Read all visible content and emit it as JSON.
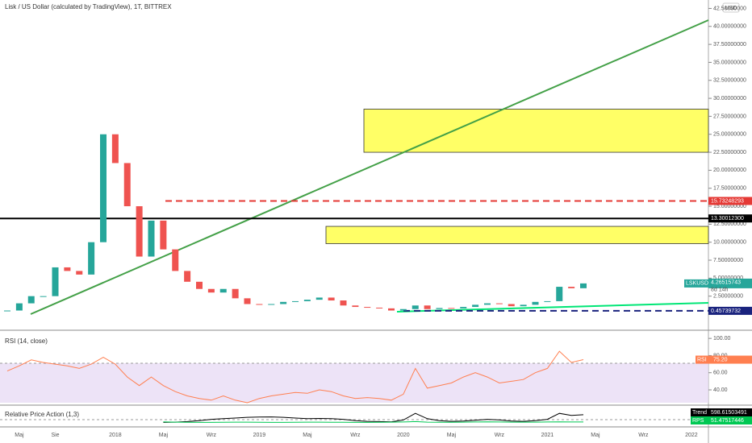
{
  "chart_data": {
    "type": "candle-line",
    "title": "Lisk / US Dollar (calculated by TradingView), 1T, BITTREX",
    "currency": "USD",
    "symbol": "LSKUSD",
    "countdown": "8d 14h",
    "last_price": {
      "value": 4.26515743,
      "label": "4.26515743"
    },
    "categories": [
      null,
      "Maj",
      null,
      null,
      "Sie",
      null,
      null,
      null,
      null,
      "2018",
      null,
      null,
      null,
      "Maj",
      null,
      null,
      null,
      "Wrz",
      null,
      null,
      null,
      "2019",
      null,
      null,
      null,
      "Maj",
      null,
      null,
      null,
      "Wrz",
      null,
      null,
      null,
      "2020",
      null,
      null,
      null,
      "Maj",
      null,
      null,
      null,
      "Wrz",
      null,
      null,
      null,
      "2021",
      null,
      null,
      null,
      "Maj",
      null,
      null,
      null,
      "Wrz",
      null,
      null,
      null,
      "2022",
      null
    ],
    "series": [
      {
        "name": "LSKUSD",
        "up_color": "#26a69a",
        "down_color": "#ef5350",
        "values": [
          0.5,
          1.5,
          2.5,
          2.5,
          6.5,
          6,
          5.5,
          10,
          25,
          21,
          15,
          8,
          13,
          9,
          6,
          4.5,
          3.5,
          3,
          3.5,
          2.2,
          1.4,
          1.3,
          1.4,
          1.7,
          1.8,
          2,
          2.3,
          1.9,
          1.2,
          1,
          0.9,
          0.8,
          0.5,
          0.7,
          1.2,
          0.7,
          0.85,
          0.8,
          1,
          1.3,
          1.5,
          1.4,
          1.1,
          1.3,
          1.7,
          1.8,
          3.8,
          3.6,
          4.27,
          null,
          null,
          null,
          null,
          null,
          null,
          null,
          null,
          null,
          null
        ]
      }
    ],
    "ylim": [
      -2.24,
      43.67
    ],
    "yticks": [
      {
        "value": 2.5,
        "label": "2.50000000"
      },
      {
        "value": 5,
        "label": "5.00000000"
      },
      {
        "value": 7.5,
        "label": "7.50000000"
      },
      {
        "value": 10,
        "label": "10.00000000"
      },
      {
        "value": 12.5,
        "label": "12.50000000"
      },
      {
        "value": 15,
        "label": "15.00000000"
      },
      {
        "value": 17.5,
        "label": "17.50000000"
      },
      {
        "value": 20,
        "label": "20.00000000"
      },
      {
        "value": 22.5,
        "label": "22.50000000"
      },
      {
        "value": 25,
        "label": "25.00000000"
      },
      {
        "value": 27.5,
        "label": "27.50000000"
      },
      {
        "value": 30,
        "label": "30.00000000"
      },
      {
        "value": 32.5,
        "label": "32.50000000"
      },
      {
        "value": 35,
        "label": "35.00000000"
      },
      {
        "value": 37.5,
        "label": "37.50000000"
      },
      {
        "value": 40,
        "label": "40.00000000"
      },
      {
        "value": 42.5,
        "label": "42.50000000"
      }
    ],
    "levels": [
      {
        "value": 15.73248293,
        "label": "15.73248293",
        "color": "#e53935"
      },
      {
        "value": 13.300123,
        "label": "13.30012300",
        "color": "#000000"
      },
      {
        "value": 0.45739732,
        "label": "0.45739732",
        "color": "#1a237e"
      }
    ],
    "zones": [
      {
        "low": 22.5,
        "high": 28.5
      },
      {
        "low": 9.8,
        "high": 12.2
      }
    ],
    "rsi": {
      "title": "RSI (14, close)",
      "name": "RSI",
      "value": {
        "value": 75.2,
        "label": "75.20"
      },
      "color": "#ff7f50",
      "values": [
        62,
        68,
        75,
        72,
        70,
        68,
        65,
        70,
        78,
        70,
        55,
        45,
        55,
        45,
        38,
        33,
        30,
        28,
        33,
        28,
        25,
        30,
        33,
        35,
        37,
        36,
        40,
        38,
        33,
        30,
        31,
        30,
        28,
        35,
        65,
        42,
        45,
        48,
        55,
        60,
        55,
        48,
        50,
        52,
        60,
        65,
        85,
        72,
        75.2,
        null,
        null,
        null,
        null,
        null,
        null,
        null,
        null,
        null,
        null
      ],
      "ylim": [
        25,
        106.7
      ],
      "yticks": [
        {
          "value": 100,
          "label": "100.00"
        },
        {
          "value": 80,
          "label": "80.00"
        },
        {
          "value": 60,
          "label": "60.00"
        },
        {
          "value": 40,
          "label": "40.00"
        }
      ]
    },
    "rpa": {
      "title": "Relative Price Action (1,3)",
      "ylim": [
        -200,
        1200
      ],
      "series": [
        {
          "name": "Trend",
          "value_label": "598.61503491",
          "color": "#000000",
          "values": [
            null,
            null,
            null,
            null,
            null,
            null,
            null,
            null,
            null,
            null,
            null,
            null,
            null,
            20,
            40,
            80,
            150,
            250,
            300,
            350,
            400,
            420,
            430,
            400,
            350,
            300,
            320,
            300,
            250,
            150,
            100,
            80,
            60,
            200,
            700,
            300,
            150,
            100,
            120,
            180,
            250,
            200,
            120,
            100,
            150,
            250,
            700,
            550,
            598.6,
            null,
            null,
            null,
            null,
            null,
            null,
            null,
            null,
            null,
            null
          ]
        },
        {
          "name": "RPS",
          "value_label": "51.47517446",
          "color": "#00c853",
          "values": [
            null,
            null,
            null,
            null,
            null,
            null,
            null,
            null,
            null,
            null,
            null,
            null,
            null,
            60,
            40,
            30,
            20,
            20,
            30,
            40,
            40,
            30,
            20,
            20,
            30,
            40,
            40,
            30,
            30,
            20,
            20,
            30,
            40,
            50,
            80,
            40,
            30,
            30,
            40,
            50,
            60,
            50,
            40,
            40,
            40,
            50,
            60,
            50,
            51.5,
            null,
            null,
            null,
            null,
            null,
            null,
            null,
            null,
            null,
            null
          ]
        }
      ]
    }
  }
}
